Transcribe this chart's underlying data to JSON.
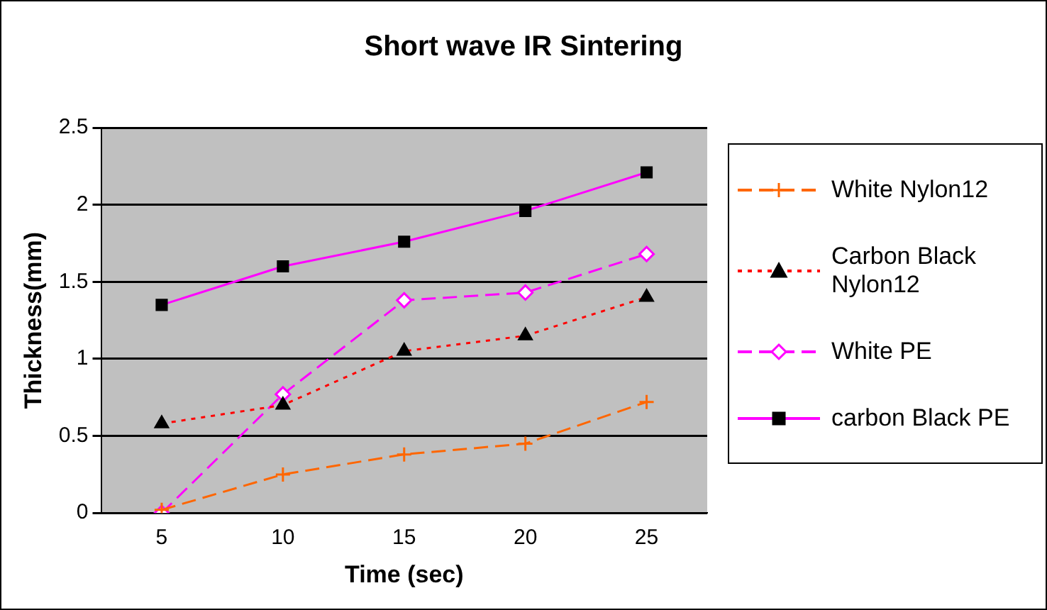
{
  "chart_data": {
    "type": "line",
    "title": "Short wave IR Sintering",
    "xlabel": "Time (sec)",
    "ylabel": "Thickness(mm)",
    "categories": [
      "5",
      "10",
      "15",
      "20",
      "25"
    ],
    "series": [
      {
        "name": "White Nylon12",
        "color": "#ff6600",
        "values": [
          0.02,
          0.25,
          0.38,
          0.45,
          0.72
        ],
        "marker": "cross",
        "line_style": "dashed"
      },
      {
        "name": "Carbon Black Nylon12",
        "color": "#ff0000",
        "values": [
          0.58,
          0.7,
          1.05,
          1.15,
          1.4
        ],
        "marker": "triangle",
        "line_style": "dotted"
      },
      {
        "name": "White PE",
        "color": "#ff00ff",
        "values": [
          0,
          0.77,
          1.38,
          1.43,
          1.68
        ],
        "marker": "diamond",
        "line_style": "dashed"
      },
      {
        "name": "carbon Black PE",
        "color": "#ff00ff",
        "values": [
          1.35,
          1.6,
          1.76,
          1.96,
          2.21
        ],
        "marker": "square",
        "line_style": "solid"
      }
    ],
    "ylim": [
      0,
      2.5
    ],
    "yticks": [
      0,
      0.5,
      1,
      1.5,
      2,
      2.5
    ],
    "grid": "y",
    "legend": "right"
  }
}
